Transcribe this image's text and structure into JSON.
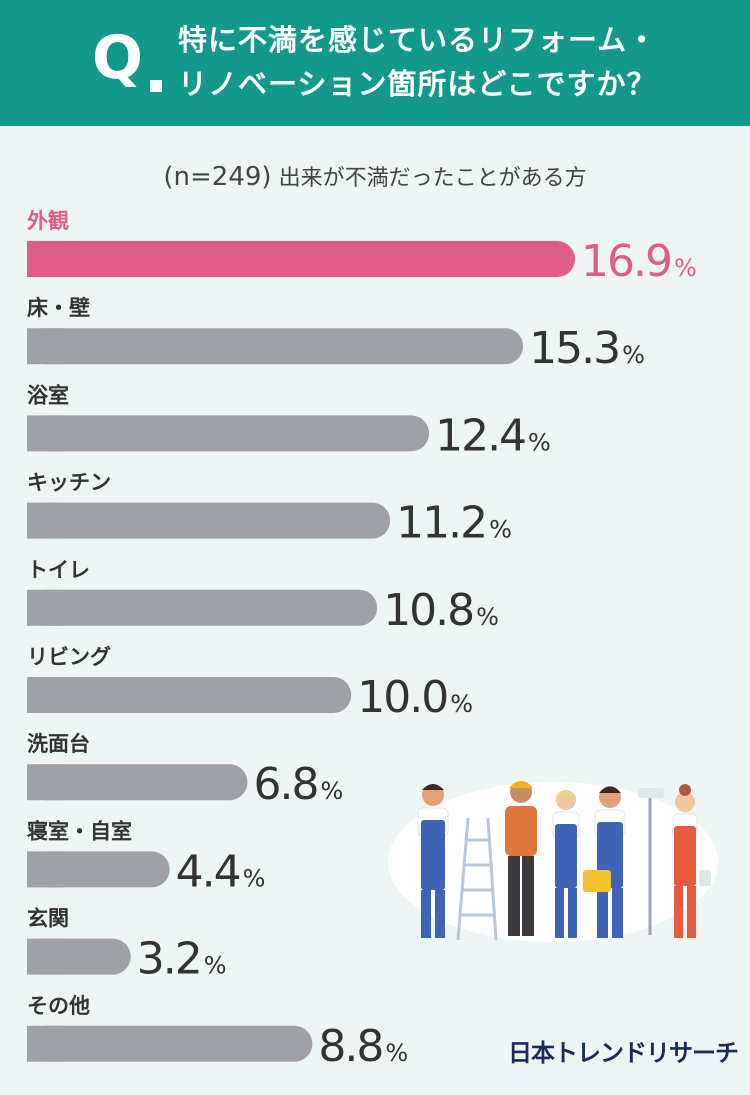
{
  "header": {
    "q_mark": "Q",
    "question_line1": "特に不満を感じているリフォーム・",
    "question_line2": "リノベーション箇所はどこですか？"
  },
  "subtitle": {
    "n_label": "(n=249)",
    "description": "出来が不満だったことがある方"
  },
  "brand": "日本トレンドリサーチ",
  "colors": {
    "header_bg": "#13998c",
    "highlight": "#e05c89",
    "bar": "#a0a1a6",
    "value_text": "#333333",
    "background": "#eef6f5"
  },
  "chart_data": {
    "type": "bar",
    "orientation": "horizontal",
    "unit": "%",
    "categories": [
      "外観",
      "床・壁",
      "浴室",
      "キッチン",
      "トイレ",
      "リビング",
      "洗面台",
      "寝室・自室",
      "玄関",
      "その他"
    ],
    "values": [
      16.9,
      15.3,
      12.4,
      11.2,
      10.8,
      10.0,
      6.8,
      4.4,
      3.2,
      8.8
    ],
    "value_labels": [
      "16.9",
      "15.3",
      "12.4",
      "11.2",
      "10.8",
      "10.0",
      "6.8",
      "4.4",
      "3.2",
      "8.8"
    ],
    "highlight_index": 0
  }
}
